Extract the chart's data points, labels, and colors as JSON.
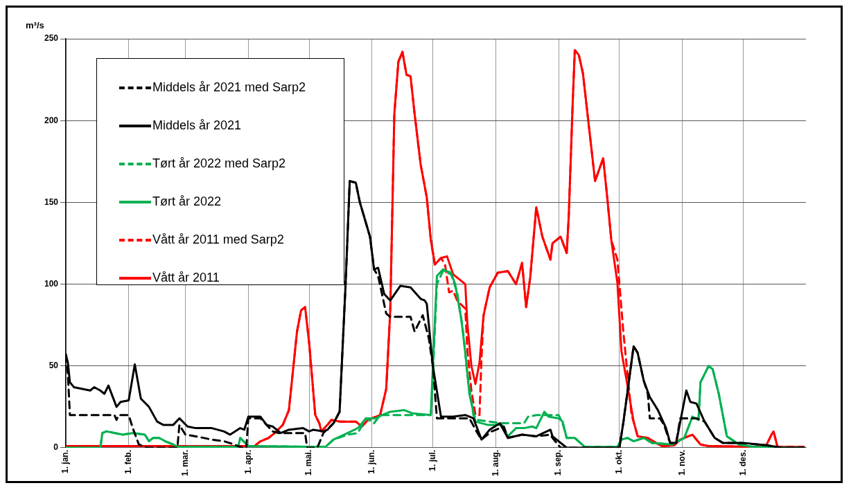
{
  "chart_data": {
    "type": "line",
    "ylabel": "m³/s",
    "xlim": [
      "--01-01",
      "--12-31"
    ],
    "ylim": [
      0,
      250
    ],
    "xticks": [
      {
        "value": "--01-01",
        "label": "1. jan."
      },
      {
        "value": "--02-01",
        "label": "1. feb."
      },
      {
        "value": "--03-01",
        "label": "1. mar."
      },
      {
        "value": "--04-01",
        "label": "1. apr."
      },
      {
        "value": "--05-01",
        "label": "1. mai."
      },
      {
        "value": "--06-01",
        "label": "1. jun."
      },
      {
        "value": "--07-01",
        "label": "1. jul."
      },
      {
        "value": "--08-01",
        "label": "1. aug."
      },
      {
        "value": "--09-01",
        "label": "1. sep."
      },
      {
        "value": "--10-01",
        "label": "1. okt."
      },
      {
        "value": "--11-01",
        "label": "1. nov."
      },
      {
        "value": "--12-01",
        "label": "1. des."
      }
    ],
    "yticks": [
      0,
      50,
      100,
      150,
      200,
      250
    ],
    "grid": true,
    "legend": "top left",
    "marker": "none",
    "series": [
      {
        "name": "Middels år 2021 med Sarp2",
        "color": "#000000",
        "line_style": "dashed",
        "x": [
          "--01-01",
          "--01-02",
          "--01-03",
          "--01-25",
          "--01-26",
          "--01-27",
          "--02-01",
          "--02-03",
          "--02-06",
          "--02-10",
          "--02-25",
          "--02-26",
          "--03-01",
          "--03-06",
          "--03-14",
          "--03-20",
          "--03-25",
          "--03-29",
          "--03-31",
          "--04-01",
          "--04-07",
          "--04-10",
          "--04-13",
          "--04-16",
          "--04-29",
          "--04-30",
          "--05-05",
          "--05-08",
          "--05-13",
          "--05-16",
          "--05-19",
          "--05-21",
          "--05-24",
          "--05-26",
          "--05-31",
          "--06-02",
          "--06-04",
          "--06-08",
          "--06-10",
          "--06-20",
          "--06-22",
          "--06-26",
          "--06-29",
          "--07-01",
          "--07-03",
          "--07-11",
          "--07-19",
          "--07-23",
          "--07-25",
          "--07-30",
          "--08-05",
          "--08-07",
          "--08-14",
          "--08-21",
          "--08-28",
          "--08-29",
          "--09-02",
          "--10-01",
          "--10-03",
          "--10-08",
          "--10-10",
          "--10-13",
          "--10-15",
          "--10-16",
          "--10-21",
          "--10-23",
          "--10-26",
          "--10-29",
          "--10-31",
          "--11-08",
          "--11-12",
          "--11-17",
          "--11-21",
          "--11-29",
          "--12-13",
          "--12-20",
          "--12-31"
        ],
        "values": [
          57,
          45,
          20,
          20,
          17,
          20,
          20,
          12,
          2,
          0,
          0,
          14,
          8,
          7,
          5,
          4,
          2,
          0,
          0,
          18,
          18,
          14,
          10,
          9,
          9,
          0,
          0,
          9,
          15,
          22,
          101,
          163,
          162,
          150,
          129,
          109,
          105,
          82,
          80,
          80,
          71,
          81,
          67,
          50,
          18,
          18,
          18,
          9,
          5,
          10,
          13,
          6,
          8,
          7,
          8,
          6,
          0,
          0,
          16,
          62,
          58,
          41,
          33,
          18,
          18,
          14,
          3,
          3,
          18,
          18,
          16,
          6,
          3,
          3,
          1.5,
          0,
          0
        ]
      },
      {
        "name": "Middels år 2021",
        "color": "#000000",
        "line_style": "solid",
        "x": [
          "--01-01",
          "--01-02",
          "--01-03",
          "--01-05",
          "--01-13",
          "--01-15",
          "--01-18",
          "--01-20",
          "--01-22",
          "--01-26",
          "--01-28",
          "--02-01",
          "--02-04",
          "--02-07",
          "--02-11",
          "--02-15",
          "--02-18",
          "--02-23",
          "--02-26",
          "--03-02",
          "--03-06",
          "--03-14",
          "--03-20",
          "--03-23",
          "--03-28",
          "--03-30",
          "--04-01",
          "--04-07",
          "--04-10",
          "--04-13",
          "--04-17",
          "--04-21",
          "--04-28",
          "--05-01",
          "--05-03",
          "--05-08",
          "--05-10",
          "--05-13",
          "--05-16",
          "--05-19",
          "--05-21",
          "--05-24",
          "--05-26",
          "--05-31",
          "--06-02",
          "--06-04",
          "--06-07",
          "--06-10",
          "--06-15",
          "--06-20",
          "--06-25",
          "--06-27",
          "--06-28",
          "--07-01",
          "--07-05",
          "--07-11",
          "--07-17",
          "--07-21",
          "--07-25",
          "--07-29",
          "--08-03",
          "--08-07",
          "--08-14",
          "--08-21",
          "--08-28",
          "--08-29",
          "--09-05",
          "--10-01",
          "--10-03",
          "--10-08",
          "--10-10",
          "--10-13",
          "--10-16",
          "--10-20",
          "--10-24",
          "--10-26",
          "--10-29",
          "--11-03",
          "--11-05",
          "--11-08",
          "--11-12",
          "--11-17",
          "--11-21",
          "--12-01",
          "--12-13",
          "--12-20",
          "--12-31"
        ],
        "values": [
          57,
          52,
          40,
          37,
          35,
          37,
          35,
          33,
          38,
          25,
          28,
          29,
          51,
          30,
          25,
          16,
          14,
          14,
          18,
          13,
          12,
          12,
          10,
          8,
          12,
          11,
          19,
          19,
          14,
          13,
          9,
          11,
          12,
          10,
          11,
          10,
          11,
          15,
          22,
          101,
          163,
          162,
          150,
          129,
          109,
          110,
          94,
          90,
          99,
          98,
          91,
          90,
          88,
          50,
          19,
          19,
          20,
          18,
          5,
          11,
          15,
          6,
          8,
          7,
          11,
          7,
          0,
          0,
          16,
          62,
          58,
          41,
          31,
          23,
          12,
          3,
          3,
          35,
          28,
          27,
          16,
          6,
          3,
          3,
          1.5,
          0,
          0
        ]
      },
      {
        "name": "Tørt år 2022 med Sarp2",
        "color": "#00b050",
        "line_style": "dashed",
        "x": [
          "--01-01",
          "--01-18",
          "--01-19",
          "--01-21",
          "--01-29",
          "--02-03",
          "--02-09",
          "--02-11",
          "--02-13",
          "--02-16",
          "--02-19",
          "--02-23",
          "--02-25",
          "--03-27",
          "--03-28",
          "--04-01",
          "--05-09",
          "--05-13",
          "--05-20",
          "--05-25",
          "--05-29",
          "--06-02",
          "--06-05",
          "--06-30",
          "--07-01",
          "--07-03",
          "--07-06",
          "--07-10",
          "--07-13",
          "--07-16",
          "--07-18",
          "--07-21",
          "--07-23",
          "--08-04",
          "--08-15",
          "--08-17",
          "--08-21",
          "--09-01",
          "--09-03",
          "--09-05",
          "--09-09",
          "--09-14",
          "--09-30",
          "--10-02",
          "--10-05",
          "--10-08",
          "--10-13",
          "--10-17",
          "--10-27",
          "--11-02",
          "--11-06",
          "--11-09",
          "--11-10",
          "--11-14",
          "--11-16",
          "--11-19",
          "--11-23",
          "--11-29",
          "--12-06",
          "--12-31"
        ],
        "values": [
          0,
          0,
          9,
          10,
          8,
          9,
          8,
          4,
          6,
          6,
          4,
          2,
          0.5,
          0.5,
          6,
          1,
          0.5,
          5,
          8,
          9,
          18,
          15,
          20,
          20,
          45,
          100,
          108,
          106,
          95,
          70,
          45,
          20,
          17,
          15,
          15,
          19,
          20,
          20,
          15,
          6,
          6,
          0.5,
          0.5,
          5,
          6,
          4,
          6,
          3,
          2,
          6,
          19,
          17,
          40,
          50,
          48,
          33,
          7,
          2,
          0.5,
          0
        ]
      },
      {
        "name": "Tørt år 2022",
        "color": "#00b050",
        "line_style": "solid",
        "x": [
          "--01-01",
          "--01-18",
          "--01-19",
          "--01-21",
          "--01-29",
          "--02-03",
          "--02-09",
          "--02-11",
          "--02-13",
          "--02-16",
          "--02-19",
          "--02-23",
          "--02-25",
          "--03-27",
          "--03-28",
          "--04-01",
          "--05-09",
          "--05-13",
          "--05-20",
          "--05-25",
          "--05-29",
          "--06-03",
          "--06-06",
          "--06-10",
          "--06-17",
          "--06-21",
          "--06-30",
          "--07-01",
          "--07-03",
          "--07-06",
          "--07-10",
          "--07-12",
          "--07-15",
          "--07-17",
          "--07-19",
          "--07-22",
          "--07-28",
          "--08-04",
          "--08-07",
          "--08-11",
          "--08-15",
          "--08-19",
          "--08-21",
          "--08-25",
          "--08-27",
          "--09-01",
          "--09-03",
          "--09-05",
          "--09-09",
          "--09-14",
          "--09-30",
          "--10-02",
          "--10-05",
          "--10-08",
          "--10-13",
          "--10-17",
          "--10-27",
          "--11-02",
          "--11-06",
          "--11-09",
          "--11-10",
          "--11-14",
          "--11-16",
          "--11-19",
          "--11-23",
          "--11-29",
          "--12-06",
          "--12-31"
        ],
        "values": [
          0,
          0,
          9,
          10,
          8,
          9,
          8,
          4,
          6,
          6,
          4,
          2,
          0.5,
          0.5,
          6,
          1,
          0.5,
          5,
          9,
          12,
          18,
          18,
          20,
          22,
          23,
          21,
          20,
          50,
          105,
          109,
          107,
          100,
          79,
          58,
          33,
          16,
          14,
          14,
          7,
          12,
          12,
          13,
          12,
          22,
          19,
          18,
          16,
          6,
          6,
          0.5,
          0.5,
          5,
          6,
          4,
          6,
          3,
          2,
          6,
          19,
          17,
          40,
          50,
          48,
          33,
          7,
          2,
          0.5,
          0
        ]
      },
      {
        "name": "Vått år 2011 med Sarp2",
        "color": "#ff0000",
        "line_style": "dashed",
        "x": [
          "--01-01",
          "--04-01",
          "--04-04",
          "--04-07",
          "--04-11",
          "--04-14",
          "--04-18",
          "--04-21",
          "--04-25",
          "--04-27",
          "--04-29",
          "--05-01",
          "--05-04",
          "--05-06",
          "--05-07",
          "--05-10",
          "--05-12",
          "--05-16",
          "--05-24",
          "--05-27",
          "--05-30",
          "--06-05",
          "--06-08",
          "--06-10",
          "--06-12",
          "--06-14",
          "--06-16",
          "--06-18",
          "--06-20",
          "--06-22",
          "--06-25",
          "--06-28",
          "--06-30",
          "--07-02",
          "--07-05",
          "--07-07",
          "--07-09",
          "--07-11",
          "--07-13",
          "--07-17",
          "--07-18",
          "--07-20",
          "--07-22",
          "--07-24",
          "--07-25",
          "--07-26",
          "--07-29",
          "--08-02",
          "--08-07",
          "--08-11",
          "--08-14",
          "--08-16",
          "--08-18",
          "--08-21",
          "--08-24",
          "--08-28",
          "--08-29",
          "--09-02",
          "--09-05",
          "--09-06",
          "--09-08",
          "--09-09",
          "--09-11",
          "--09-13",
          "--09-15",
          "--09-19",
          "--09-23",
          "--09-25",
          "--09-27",
          "--09-30",
          "--10-01",
          "--10-03",
          "--10-05",
          "--10-07",
          "--10-08",
          "--10-10",
          "--10-15",
          "--10-19",
          "--10-22",
          "--10-28",
          "--10-31",
          "--11-06",
          "--11-10",
          "--11-14",
          "--12-12",
          "--12-15",
          "--12-16",
          "--12-18",
          "--12-31"
        ],
        "values": [
          1,
          1,
          1,
          4,
          6,
          9,
          14,
          23,
          71,
          84,
          86,
          64,
          20,
          15,
          10,
          14,
          17,
          16,
          16,
          13,
          17,
          20,
          36,
          84,
          204,
          236,
          242,
          228,
          227,
          204,
          173,
          153,
          127,
          112,
          116,
          112,
          95,
          96,
          90,
          85,
          60,
          35,
          20,
          20,
          55,
          81,
          98,
          107,
          108,
          100,
          113,
          86,
          104,
          147,
          129,
          115,
          125,
          129,
          119,
          141,
          212,
          243,
          240,
          229,
          207,
          163,
          177,
          153,
          127,
          115,
          100,
          70,
          45,
          20,
          16,
          7,
          6,
          3,
          1,
          1.5,
          5,
          8,
          2,
          1,
          0.5,
          8,
          10,
          0.5,
          0.5
        ]
      },
      {
        "name": "Vått år 2011",
        "color": "#ff0000",
        "line_style": "solid",
        "x": [
          "--01-01",
          "--04-01",
          "--04-04",
          "--04-07",
          "--04-11",
          "--04-14",
          "--04-18",
          "--04-21",
          "--04-25",
          "--04-27",
          "--04-29",
          "--05-01",
          "--05-04",
          "--05-06",
          "--05-07",
          "--05-10",
          "--05-12",
          "--05-16",
          "--05-24",
          "--05-27",
          "--05-30",
          "--06-05",
          "--06-08",
          "--06-10",
          "--06-12",
          "--06-14",
          "--06-16",
          "--06-18",
          "--06-20",
          "--06-22",
          "--06-25",
          "--06-28",
          "--06-30",
          "--07-02",
          "--07-05",
          "--07-08",
          "--07-11",
          "--07-17",
          "--07-18",
          "--07-20",
          "--07-22",
          "--07-24",
          "--07-26",
          "--07-29",
          "--08-02",
          "--08-07",
          "--08-11",
          "--08-14",
          "--08-16",
          "--08-18",
          "--08-21",
          "--08-24",
          "--08-28",
          "--08-29",
          "--09-02",
          "--09-05",
          "--09-06",
          "--09-08",
          "--09-09",
          "--09-11",
          "--09-13",
          "--09-15",
          "--09-19",
          "--09-23",
          "--09-25",
          "--09-27",
          "--09-30",
          "--10-02",
          "--10-05",
          "--10-08",
          "--10-10",
          "--10-15",
          "--10-19",
          "--10-22",
          "--10-28",
          "--10-31",
          "--11-06",
          "--11-10",
          "--11-14",
          "--12-12",
          "--12-15",
          "--12-16",
          "--12-18",
          "--12-31"
        ],
        "values": [
          1,
          1,
          1,
          4,
          6,
          9,
          14,
          23,
          71,
          84,
          86,
          64,
          20,
          15,
          10,
          14,
          17,
          16,
          16,
          13,
          17,
          20,
          36,
          84,
          204,
          236,
          242,
          228,
          227,
          204,
          173,
          153,
          127,
          112,
          116,
          117,
          106,
          100,
          76,
          50,
          39,
          52,
          81,
          98,
          107,
          108,
          100,
          113,
          86,
          104,
          147,
          129,
          115,
          125,
          129,
          119,
          141,
          212,
          243,
          240,
          229,
          207,
          163,
          177,
          153,
          127,
          101,
          59,
          38,
          16,
          7,
          6,
          3,
          1,
          1.5,
          5,
          8,
          2,
          1,
          0.5,
          8,
          10,
          0.5,
          0.5
        ]
      }
    ]
  }
}
